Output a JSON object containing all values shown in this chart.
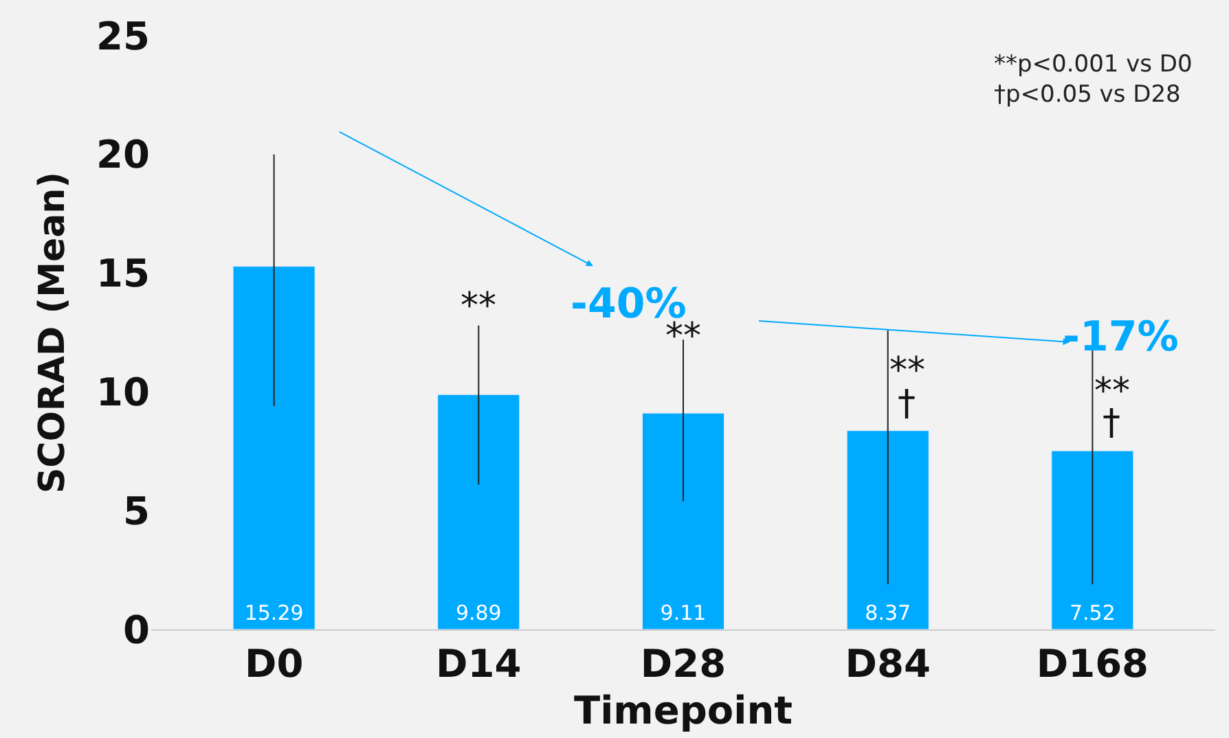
{
  "chart_data": {
    "type": "bar",
    "xlabel": "Timepoint",
    "ylabel": "SCORAD (Mean)",
    "categories": [
      "D0",
      "D14",
      "D28",
      "D84",
      "D168"
    ],
    "values": [
      15.29,
      9.89,
      9.11,
      8.37,
      7.52
    ],
    "errors": [
      [
        9.4,
        20.0
      ],
      [
        6.1,
        12.8
      ],
      [
        5.4,
        12.2
      ],
      [
        1.9,
        12.6
      ],
      [
        1.9,
        12.1
      ]
    ],
    "color": "#00aaff",
    "data_labels": true,
    "ylim": [
      0,
      25
    ],
    "yticks": [
      0,
      5,
      10,
      15,
      20,
      25
    ],
    "grid": false,
    "annotations": [
      "**",
      {
        "text": "**",
        "x": "D28",
        "y": 12.3
      },
      {
        "text": "**",
        "x": "D84",
        "y": 10.9
      },
      {
        "text": "†",
        "x": "D84",
        "y": 9.5
      },
      {
        "text": "**",
        "x": "D168",
        "y": 10.0
      },
      {
        "text": "†",
        "x": "D168",
        "y": 8.7
      },
      "-40%",
      {
        "text": "-17%",
        "x": "D168",
        "y": 12.3
      },
      "**p<0.001 vs D0\n†p<0.05 vs D28"
    ]
  }
}
